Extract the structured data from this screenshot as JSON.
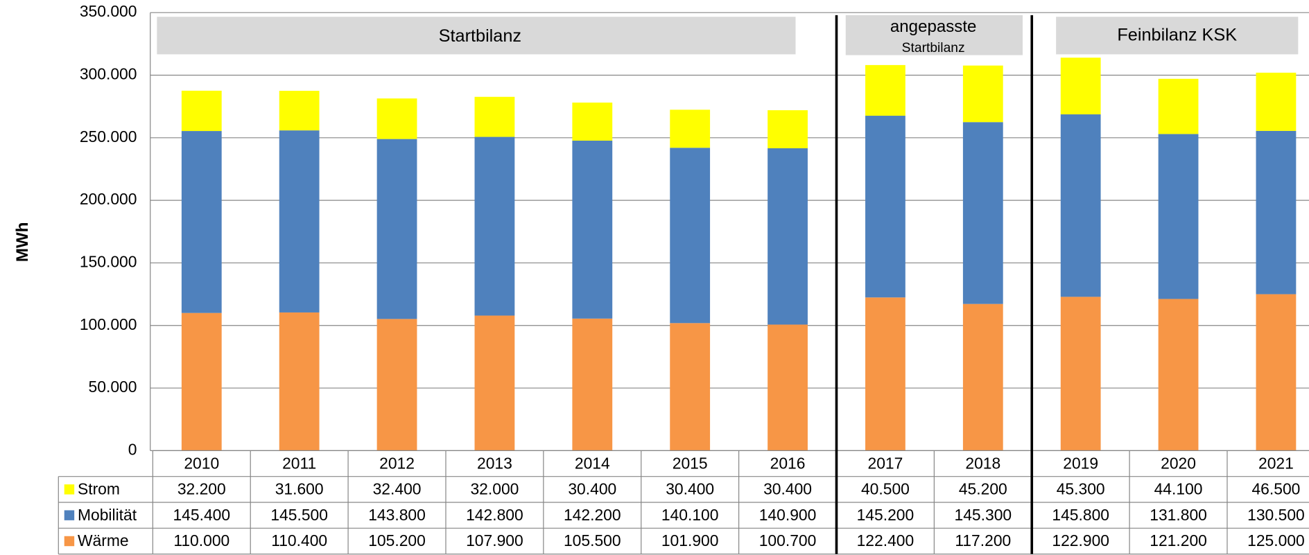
{
  "chart_data": {
    "type": "bar",
    "stacked": true,
    "y_label": "MWh",
    "annotations": [
      "Startbilanz",
      "angepasste",
      "Startbilanz",
      "Feinbilanz KSK"
    ],
    "categories": [
      "2010",
      "2011",
      "2012",
      "2013",
      "2014",
      "2015",
      "2016",
      "2017",
      "2018",
      "2019",
      "2020",
      "2021"
    ],
    "series": [
      {
        "name": "Strom",
        "color": "#ffff00",
        "values": [
          32200,
          31600,
          32400,
          32000,
          30400,
          30400,
          30400,
          40500,
          45200,
          45300,
          44100,
          46500
        ],
        "value_labels": [
          "32.200",
          "31.600",
          "32.400",
          "32.000",
          "30.400",
          "30.400",
          "30.400",
          "40.500",
          "45.200",
          "45.300",
          "44.100",
          "46.500"
        ]
      },
      {
        "name": "Mobilität",
        "color": "#4f81bd",
        "values": [
          145400,
          145500,
          143800,
          142800,
          142200,
          140100,
          140900,
          145200,
          145300,
          145800,
          131800,
          130500
        ],
        "value_labels": [
          "145.400",
          "145.500",
          "143.800",
          "142.800",
          "142.200",
          "140.100",
          "140.900",
          "145.200",
          "145.300",
          "145.800",
          "131.800",
          "130.500"
        ]
      },
      {
        "name": "Wärme",
        "color": "#f79646",
        "values": [
          110000,
          110400,
          105200,
          107900,
          105500,
          101900,
          100700,
          122400,
          117200,
          122900,
          121200,
          125000
        ],
        "value_labels": [
          "110.000",
          "110.400",
          "105.200",
          "107.900",
          "105.500",
          "101.900",
          "100.700",
          "122.400",
          "117.200",
          "122.900",
          "121.200",
          "125.000"
        ]
      }
    ],
    "ylim": [
      0,
      350000
    ],
    "yticks": [
      0,
      {
        "value": 50000,
        "label": "50.000"
      },
      {
        "value": 100000,
        "label": "100.000"
      },
      {
        "value": 150000,
        "label": "150.000"
      },
      {
        "value": 200000,
        "label": "200.000"
      },
      {
        "value": 250000,
        "label": "250.000"
      },
      {
        "value": 300000,
        "label": "300.000"
      },
      {
        "value": 350000,
        "label": "350.000"
      }
    ],
    "grid": true
  }
}
